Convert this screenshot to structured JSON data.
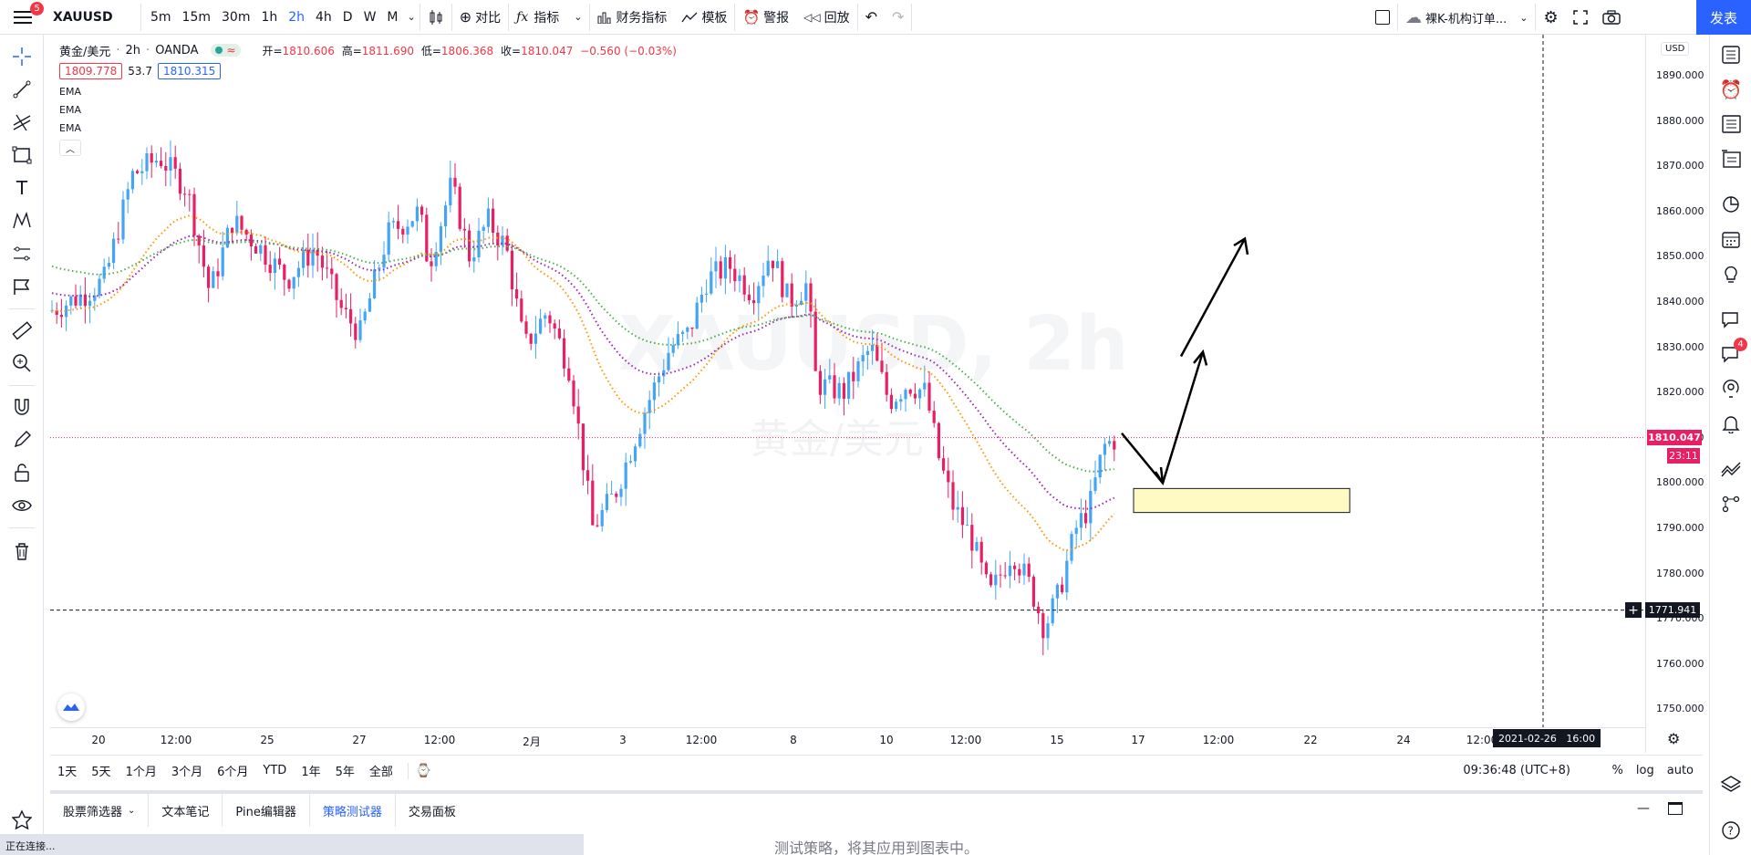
{
  "topbar": {
    "menu_badge": "5",
    "symbol": "XAUUSD",
    "timeframes": [
      "5m",
      "15m",
      "30m",
      "1h",
      "2h",
      "4h",
      "D",
      "W",
      "M"
    ],
    "active_timeframe": "2h",
    "compare_label": "对比",
    "indicators_label": "指标",
    "financials_label": "财务指标",
    "templates_label": "模板",
    "alert_label": "警报",
    "replay_label": "回放",
    "layout_name": "裸K-机构订单...",
    "publish_label": "发表"
  },
  "legend": {
    "title": "黄金/美元",
    "interval": "2h",
    "exchange": "OANDA",
    "open_label": "开=",
    "open": "1810.606",
    "high_label": "高=",
    "high": "1811.690",
    "low_label": "低=",
    "low": "1806.368",
    "close_label": "收=",
    "close": "1810.047",
    "change": "−0.560 (−0.03%)",
    "bid": "1809.778",
    "spread": "53.7",
    "ask": "1810.315",
    "emas": [
      "EMA",
      "EMA",
      "EMA"
    ]
  },
  "watermark": {
    "symbol": "XAUUSD, 2h",
    "name": "黄金/美元"
  },
  "price_axis": {
    "currency": "USD",
    "labels": [
      "1890.000",
      "1880.000",
      "1870.000",
      "1860.000",
      "1850.000",
      "1840.000",
      "1830.000",
      "1820.000",
      "1810.000",
      "1800.000",
      "1790.000",
      "1780.000",
      "1770.000",
      "1760.000",
      "1750.000"
    ],
    "last_price": "1810.047",
    "countdown": "23:11",
    "crosshair_price": "1771.941"
  },
  "time_axis": {
    "labels": [
      "20",
      "12:00",
      "25",
      "27",
      "12:00",
      "2月",
      "3",
      "12:00",
      "8",
      "10",
      "12:00",
      "15",
      "17",
      "12:00",
      "22",
      "24",
      "12:00"
    ],
    "crosshair_time": "2021-02-26   16:00"
  },
  "range_bar": {
    "ranges": [
      "1天",
      "5天",
      "1个月",
      "3个月",
      "6个月",
      "YTD",
      "1年",
      "5年",
      "全部"
    ],
    "clock": "09:36:48 (UTC+8)",
    "percent": "%",
    "log": "log",
    "auto": "auto"
  },
  "bottom_panel": {
    "tabs": [
      "股票筛选器",
      "文本笔记",
      "Pine编辑器",
      "策略测试器",
      "交易面板"
    ],
    "active_tab": "策略测试器",
    "message": "测试策略，将其应用到图表中。"
  },
  "status": "正在连接...",
  "right_sidebar": {
    "notification_badge": "4"
  },
  "colors": {
    "up": "#42a5f5",
    "down": "#e91e63",
    "ema_fast": "#ff9800",
    "ema_mid": "#9c27b0",
    "ema_slow": "#4caf50",
    "accent": "#2962ff",
    "last_price_tag": "#e91e63",
    "zone_fill": "#fff9c4"
  }
}
